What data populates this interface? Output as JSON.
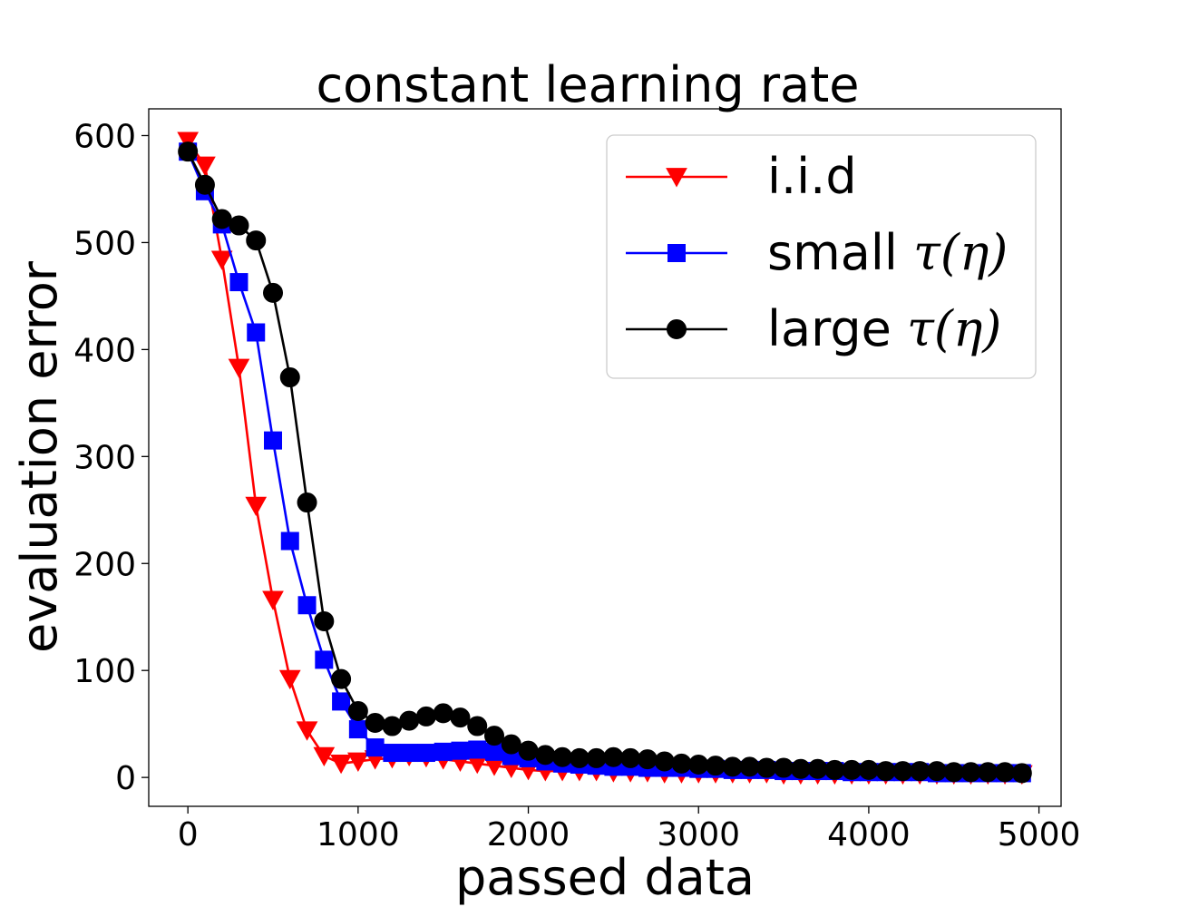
{
  "chart_data": {
    "type": "line",
    "title": "constant learning rate",
    "xlabel": "passed data",
    "ylabel": "evaluation error",
    "xlim": [
      -230,
      5130
    ],
    "ylim": [
      -27,
      625
    ],
    "xticks": [
      0,
      1000,
      2000,
      3000,
      4000,
      5000
    ],
    "yticks": [
      0,
      100,
      200,
      300,
      400,
      500,
      600
    ],
    "grid": false,
    "legend_position": "top-right",
    "x": [
      0,
      100,
      200,
      300,
      400,
      500,
      600,
      700,
      800,
      900,
      1000,
      1100,
      1200,
      1300,
      1400,
      1500,
      1600,
      1700,
      1800,
      1900,
      2000,
      2100,
      2200,
      2300,
      2400,
      2500,
      2600,
      2700,
      2800,
      2900,
      3000,
      3100,
      3200,
      3300,
      3400,
      3500,
      3600,
      3700,
      3800,
      3900,
      4000,
      4100,
      4200,
      4300,
      4400,
      4500,
      4600,
      4700,
      4800,
      4900
    ],
    "series": [
      {
        "name_text": "i.i.d",
        "name_symbol": "",
        "color": "#ff0000",
        "marker": "triangle-down",
        "values": [
          595,
          572,
          484,
          383,
          254,
          166,
          92,
          44,
          20,
          13,
          15,
          17,
          18,
          20,
          19,
          17,
          15,
          13,
          11,
          9,
          7,
          6,
          6,
          6,
          6,
          5,
          5,
          5,
          4,
          4,
          4,
          4,
          4,
          4,
          4,
          3,
          3,
          3,
          3,
          3,
          3,
          3,
          3,
          3,
          3,
          3,
          3,
          3,
          3,
          3
        ]
      },
      {
        "name_text": "small ",
        "name_symbol": "τ(η)",
        "color": "#0000ff",
        "marker": "square",
        "values": [
          585,
          548,
          517,
          463,
          416,
          315,
          221,
          161,
          110,
          71,
          45,
          28,
          23,
          23,
          23,
          24,
          25,
          26,
          24,
          20,
          18,
          15,
          13,
          12,
          11,
          10,
          10,
          9,
          9,
          9,
          8,
          8,
          7,
          7,
          7,
          6,
          6,
          6,
          6,
          5,
          5,
          5,
          5,
          5,
          4,
          4,
          4,
          4,
          4,
          4
        ]
      },
      {
        "name_text": "large ",
        "name_symbol": "τ(η)",
        "color": "#000000",
        "marker": "circle",
        "values": [
          585,
          554,
          522,
          516,
          502,
          453,
          374,
          257,
          146,
          92,
          62,
          51,
          48,
          53,
          57,
          60,
          56,
          48,
          39,
          31,
          25,
          21,
          19,
          18,
          18,
          19,
          18,
          17,
          15,
          13,
          12,
          11,
          10,
          10,
          9,
          9,
          8,
          8,
          7,
          7,
          7,
          6,
          6,
          6,
          6,
          5,
          5,
          5,
          5,
          4
        ]
      }
    ]
  }
}
